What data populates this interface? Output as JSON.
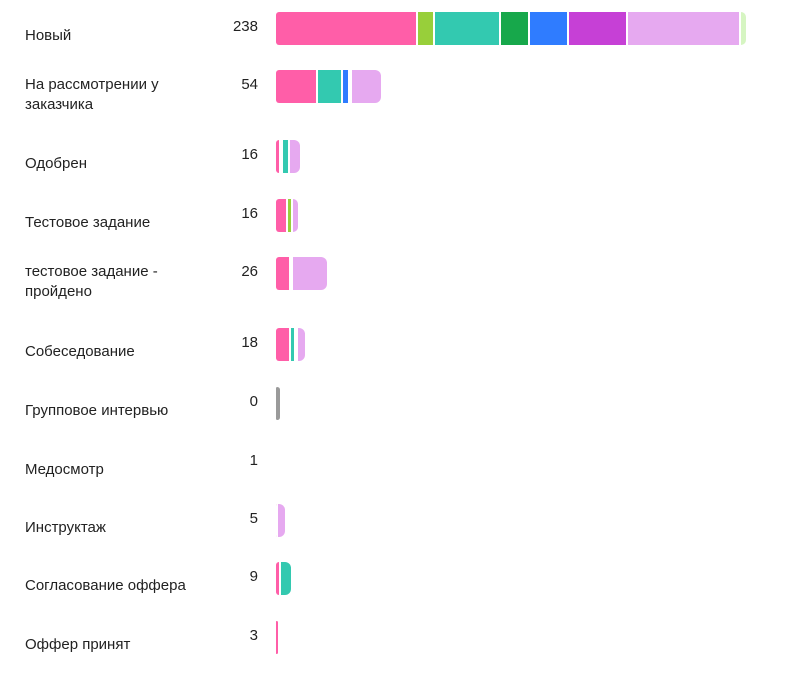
{
  "colors": {
    "pink": "#ff5ea8",
    "lime": "#98cf3a",
    "teal": "#33c9b0",
    "green": "#17a84b",
    "blue": "#2f7cff",
    "purple": "#c640d6",
    "lavender": "#e6a9f0",
    "pale_green": "#d6f5c2",
    "gray": "#9a9a9a"
  },
  "stages": [
    {
      "label": "Новый",
      "count": "238",
      "segments": [
        {
          "color": "pink",
          "value": 58
        },
        {
          "color": "lime",
          "value": 7
        },
        {
          "color": "teal",
          "value": 27
        },
        {
          "color": "green",
          "value": 12
        },
        {
          "color": "blue",
          "value": 16
        },
        {
          "color": "purple",
          "value": 24
        },
        {
          "color": "lavender",
          "value": 46
        },
        {
          "color": "pale_green",
          "value": 2
        }
      ]
    },
    {
      "label": "На рассмотрении у заказчика",
      "count": "54",
      "segments": [
        {
          "color": "pink",
          "value": 17
        },
        {
          "color": "teal",
          "value": 10
        },
        {
          "color": "blue",
          "value": 3
        },
        {
          "color": "purple",
          "value": 1
        },
        {
          "color": "lavender",
          "value": 12
        }
      ]
    },
    {
      "label": "Одобрен",
      "count": "16",
      "segments": [
        {
          "color": "pink",
          "value": 2
        },
        {
          "color": "lime",
          "value": 1
        },
        {
          "color": "teal",
          "value": 3
        },
        {
          "color": "lavender",
          "value": 4
        }
      ]
    },
    {
      "label": "Тестовое задание",
      "count": "16",
      "segments": [
        {
          "color": "pink",
          "value": 5
        },
        {
          "color": "lime",
          "value": 2
        },
        {
          "color": "lavender",
          "value": 2
        }
      ]
    },
    {
      "label": "тестовое задание - пройдено",
      "count": "26",
      "segments": [
        {
          "color": "pink",
          "value": 6
        },
        {
          "color": "lime",
          "value": 1
        },
        {
          "color": "lavender",
          "value": 14
        }
      ]
    },
    {
      "label": "Собеседование",
      "count": "18",
      "segments": [
        {
          "color": "pink",
          "value": 6
        },
        {
          "color": "teal",
          "value": 2
        },
        {
          "color": "purple",
          "value": 1
        },
        {
          "color": "lavender",
          "value": 3
        }
      ]
    },
    {
      "label": "Групповое интервью",
      "count": "0",
      "segments": [
        {
          "color": "gray",
          "value": 1.5
        }
      ]
    },
    {
      "label": "Медосмотр",
      "count": "1",
      "segments": []
    },
    {
      "label": "Инструктаж",
      "count": "5",
      "segments": [
        {
          "color": "pink",
          "value": 1
        },
        {
          "color": "lavender",
          "value": 3
        }
      ]
    },
    {
      "label": "Согласование оффера",
      "count": "9",
      "segments": [
        {
          "color": "pink",
          "value": 2
        },
        {
          "color": "teal",
          "value": 4
        }
      ]
    },
    {
      "label": "Оффер принят",
      "count": "3",
      "segments": [
        {
          "color": "pink",
          "value": 1
        }
      ]
    }
  ]
}
